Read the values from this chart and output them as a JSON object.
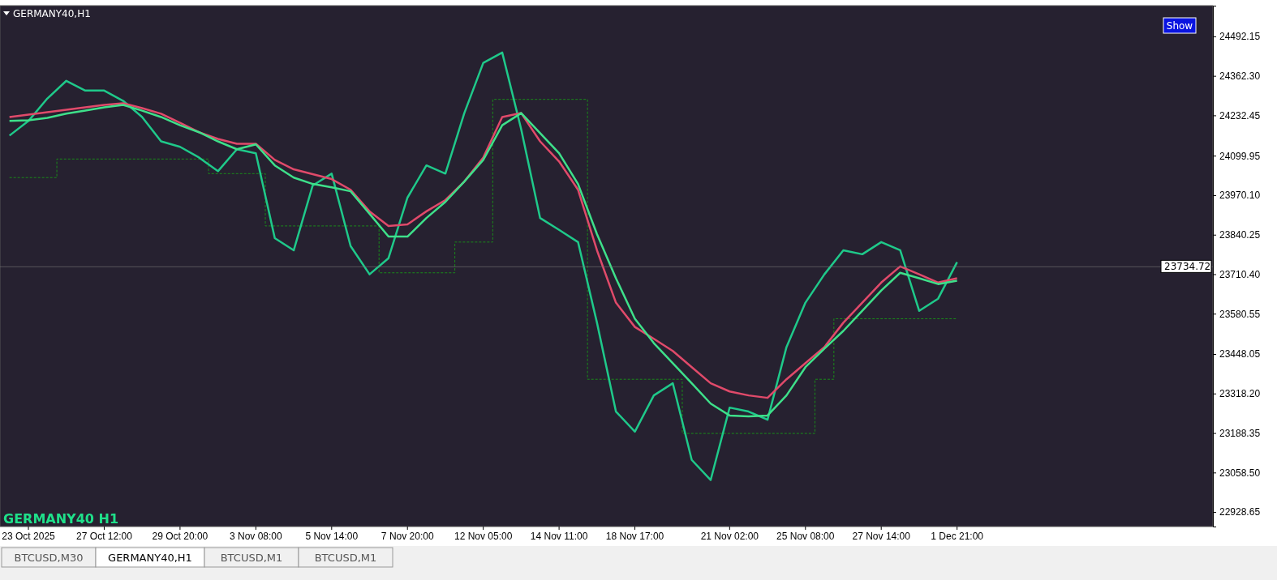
{
  "chart_data": {
    "type": "line",
    "title": "GERMANY40,H1",
    "categories": [
      null,
      "23 Oct 2025",
      null,
      null,
      null,
      "27 Oct 12:00",
      null,
      null,
      null,
      "29 Oct 20:00",
      null,
      null,
      null,
      "3 Nov 08:00",
      null,
      null,
      null,
      "5 Nov 14:00",
      null,
      null,
      null,
      "7 Nov 20:00",
      null,
      null,
      null,
      "12 Nov 05:00",
      null,
      null,
      null,
      "14 Nov 11:00",
      null,
      null,
      null,
      "18 Nov 17:00",
      null,
      null,
      null,
      null,
      "21 Nov 02:00",
      null,
      null,
      null,
      "25 Nov 08:00",
      null,
      null,
      null,
      "27 Nov 14:00",
      null,
      null,
      null,
      "1 Dec 21:00",
      null,
      null,
      null,
      null,
      null,
      null,
      null,
      null,
      null,
      null,
      null,
      null,
      null
    ],
    "series": [
      {
        "type": "step",
        "color": "#1a8a1a",
        "line_style": "dashed",
        "values": [
          24028,
          24028,
          24028,
          24089,
          24089,
          24089,
          24089,
          24089,
          24089,
          24089,
          24089,
          24041,
          24041,
          24041,
          23869,
          23869,
          23869,
          23869,
          23869,
          23869,
          23715,
          23715,
          23715,
          23715,
          23816,
          23816,
          24285,
          24285,
          24285,
          24285,
          24285,
          23365,
          23365,
          23365,
          23365,
          23365,
          23187,
          23187,
          23187,
          23187,
          23187,
          23187,
          23187,
          23365,
          23564,
          23564,
          23564,
          23564,
          23564,
          23564,
          23564,
          null,
          null,
          null,
          null,
          null,
          null,
          null,
          null,
          null,
          null,
          null,
          null,
          null
        ]
      },
      {
        "color": "#1fc98a",
        "values": [
          24166,
          24214,
          24288,
          24346,
          24314,
          24314,
          24280,
          24227,
          24147,
          24129,
          24094,
          24049,
          24121,
          24108,
          23829,
          23789,
          24002,
          24041,
          23803,
          23710,
          23763,
          23962,
          24068,
          24041,
          24240,
          24405,
          24439,
          24187,
          23895,
          23856,
          23816,
          23551,
          23259,
          23193,
          23312,
          23352,
          23100,
          23034,
          23272,
          23259,
          23232,
          23471,
          23617,
          23710,
          23789,
          23776,
          23816,
          23789,
          23590,
          23630,
          23750,
          null,
          null,
          null,
          null,
          null,
          null,
          null,
          null,
          null,
          null,
          null,
          null,
          null
        ]
      },
      {
        "color": "#e04a6a",
        "values": [
          24227,
          24235,
          24243,
          24251,
          24259,
          24267,
          24272,
          24256,
          24238,
          24208,
          24177,
          24155,
          24139,
          24139,
          24086,
          24055,
          24039,
          24023,
          23988,
          23917,
          23869,
          23874,
          23917,
          23954,
          24015,
          24094,
          24227,
          24240,
          24147,
          24081,
          23988,
          23789,
          23617,
          23537,
          23498,
          23458,
          23405,
          23352,
          23325,
          23312,
          23304,
          23365,
          23418,
          23471,
          23551,
          23617,
          23683,
          23736,
          23710,
          23683,
          23697,
          null,
          null,
          null,
          null,
          null,
          null,
          null,
          null,
          null,
          null,
          null,
          null,
          null
        ]
      },
      {
        "color": "#3ee08a",
        "values": [
          24214,
          24216,
          24224,
          24238,
          24248,
          24259,
          24267,
          24248,
          24227,
          24200,
          24177,
          24147,
          24121,
          24137,
          24068,
          24028,
          24007,
          23996,
          23983,
          23909,
          23834,
          23834,
          23895,
          23948,
          24015,
          24086,
          24200,
          24240,
          24174,
          24108,
          24007,
          23842,
          23697,
          23564,
          23484,
          23418,
          23352,
          23285,
          23246,
          23243,
          23246,
          23312,
          23405,
          23466,
          23524,
          23590,
          23657,
          23715,
          23697,
          23678,
          23689,
          null,
          null,
          null,
          null,
          null,
          null,
          null,
          null,
          null,
          null,
          null,
          null,
          null
        ]
      }
    ],
    "ylim": [
      22881,
      24593
    ],
    "yticks": [
      22928.65,
      {
        "value": 23058.5,
        "label": "23058.50"
      },
      23188.35,
      {
        "value": 23318.2,
        "label": "23318.20"
      },
      23448.05,
      23580.55,
      {
        "value": 23710.4,
        "label": "23710.40"
      },
      23840.25,
      {
        "value": 23970.1,
        "label": "23970.10"
      },
      24099.95,
      24232.45,
      {
        "value": 24362.3,
        "label": "24362.30"
      },
      24492.15
    ],
    "ref_lines": [
      {
        "axis": "y",
        "value": 23734.72,
        "label": "23734.72"
      }
    ],
    "annotations": [
      "Show",
      "GERMANY40 H1",
      "BTCUSD,M30",
      "GERMANY40,H1",
      "BTCUSD,M1",
      "BTCUSD,M1"
    ],
    "grid": false,
    "marker": "none"
  }
}
